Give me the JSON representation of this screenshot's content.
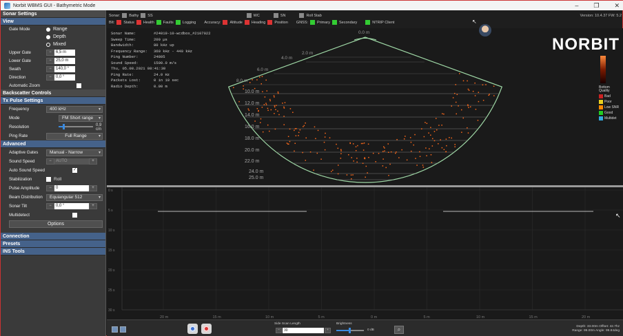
{
  "window": {
    "title": "Norbit WBMS GUI - Bathymetric Mode",
    "controls": [
      "–",
      "❐",
      "✕"
    ]
  },
  "left_panel": {
    "sonar_settings": "Sonar Settings",
    "view": "View",
    "gate_mode_label": "Gate Mode",
    "gate_modes": [
      "Range",
      "Depth",
      "Mixed"
    ],
    "upper_gate_label": "Upper Gate",
    "upper_gate": "6,5 m",
    "lower_gate_label": "Lower Gate",
    "lower_gate": "25,0 m",
    "swath_label": "Swath",
    "swath": "140,0 °",
    "direction_label": "Direction",
    "direction": "0,0 °",
    "automatic_zoom_label": "Automatic Zoom",
    "backscatter_controls": "Backscatter Controls",
    "tx_pulse_settings": "Tx Pulse Settings",
    "frequency_label": "Frequency",
    "frequency": "400 kHz",
    "mode_label": "Mode",
    "mode": "FM Short range",
    "resolution_label": "Resolution",
    "resolution": "0,9 cm",
    "ping_rate_label": "Ping Rate",
    "ping_rate": "Full Range",
    "advanced": "Advanced",
    "adaptive_gates_label": "Adaptive Gates",
    "adaptive_gates": "Manual - Narrow",
    "sound_speed_label": "Sound Speed",
    "sound_speed": "AUTO",
    "auto_sound_speed_label": "Auto Sound Speed",
    "stabilization_label": "Stabilization",
    "stabilization_roll": "Roll",
    "pulse_amplitude_label": "Pulse Amplitude",
    "pulse_amplitude": "0",
    "beam_distribution_label": "Beam Distribution",
    "beam_distribution": "Equiangular 512",
    "sonar_tilt_label": "Sonar Tilt",
    "sonar_tilt": "0,0 °",
    "multidetect_label": "Multidetect",
    "options_button": "Options",
    "connection": "Connection",
    "presets": "Presets",
    "ins_tools": "INS Tools"
  },
  "topbar": {
    "sonar_label": "Sonar:",
    "sonar_items": [
      "Bathy",
      "SS"
    ],
    "wc": "WC",
    "sn": "SN",
    "roll_stab": "Roll Stab",
    "bit_label": "BIt:",
    "bit_items": [
      "Status",
      "Health",
      "Faults",
      "Logging"
    ],
    "accuracy_label": "Accuracy:",
    "accuracy_items": [
      "Altitude",
      "Heading",
      "Position"
    ],
    "gnss_label": "GNSS:",
    "gnss_items": [
      "Primary",
      "Secondary"
    ],
    "ntrip": "NTRIP Client",
    "version": "Version: 10.4.37   FW: 5.2",
    "status_colors": {
      "red": "#dd3333",
      "green": "#33cc33",
      "grey": "#8a8a8a"
    }
  },
  "info": [
    {
      "k": "Sonar Name:",
      "v": "#24019-10-wcdbox_#2107022"
    },
    {
      "k": "Sweep Time:",
      "v": "200 µs"
    },
    {
      "k": "Bandwidth:",
      "v": "80 kHz up"
    },
    {
      "k": "Frequency Range:",
      "v": "360 kHz - 440 kHz"
    },
    {
      "k": "Ping Number:",
      "v": "24805"
    },
    {
      "k": "Sound Speed:",
      "v": "1500.0 m/s"
    },
    {
      "k": "Thu, 05.08.2021 08:41:30",
      "v": ""
    },
    {
      "k": "Ping Rate:",
      "v": "24.0 Hz"
    },
    {
      "k": "Packets Lost:",
      "v": "0 in 10 sec"
    },
    {
      "k": "Radio Depth:",
      "v": "0.00 m"
    }
  ],
  "logo": "NORBIT",
  "legend": {
    "title": "Bottom Quality",
    "items": [
      {
        "label": "Bad",
        "color": "#cc2222"
      },
      {
        "label": "Poor",
        "color": "#e8d020"
      },
      {
        "label": "Low SNR",
        "color": "#ff8800"
      },
      {
        "label": "Good",
        "color": "#22cc22"
      },
      {
        "label": "Multidet",
        "color": "#33aadd"
      }
    ]
  },
  "fan": {
    "apex_label": "0.0 m",
    "side_labels": [
      "2.0 m",
      "4.0 m",
      "6.0 m",
      "8.0 m"
    ],
    "depth_labels": [
      "10.0 m",
      "12.0 m",
      "14.0 m",
      "16.0 m",
      "18.0 m",
      "20.0 m",
      "22.0 m",
      "24.0 m",
      "25.0 m"
    ],
    "border_color": "#9fd8a6",
    "ping_color": "#ff6a1a"
  },
  "lower": {
    "y_ticks": [
      "0 s",
      "5 s",
      "10 s",
      "15 s",
      "20 s",
      "25 s",
      "30 s"
    ],
    "x_ticks": [
      "20 m",
      "15 m",
      "10 m",
      "5 m",
      "0 m",
      "5 m",
      "10 m",
      "15 m",
      "20 m"
    ]
  },
  "bottom": {
    "side_scan_length_label": "Side Scan Length",
    "side_scan_length": "30",
    "brightness_label": "Brightness",
    "brightness_value": "0 dB",
    "depth_line": "Depth: 33.00m   Offset: 42.7hz",
    "range_line": "Range: 99.00m   Angle: 99.84deg"
  }
}
